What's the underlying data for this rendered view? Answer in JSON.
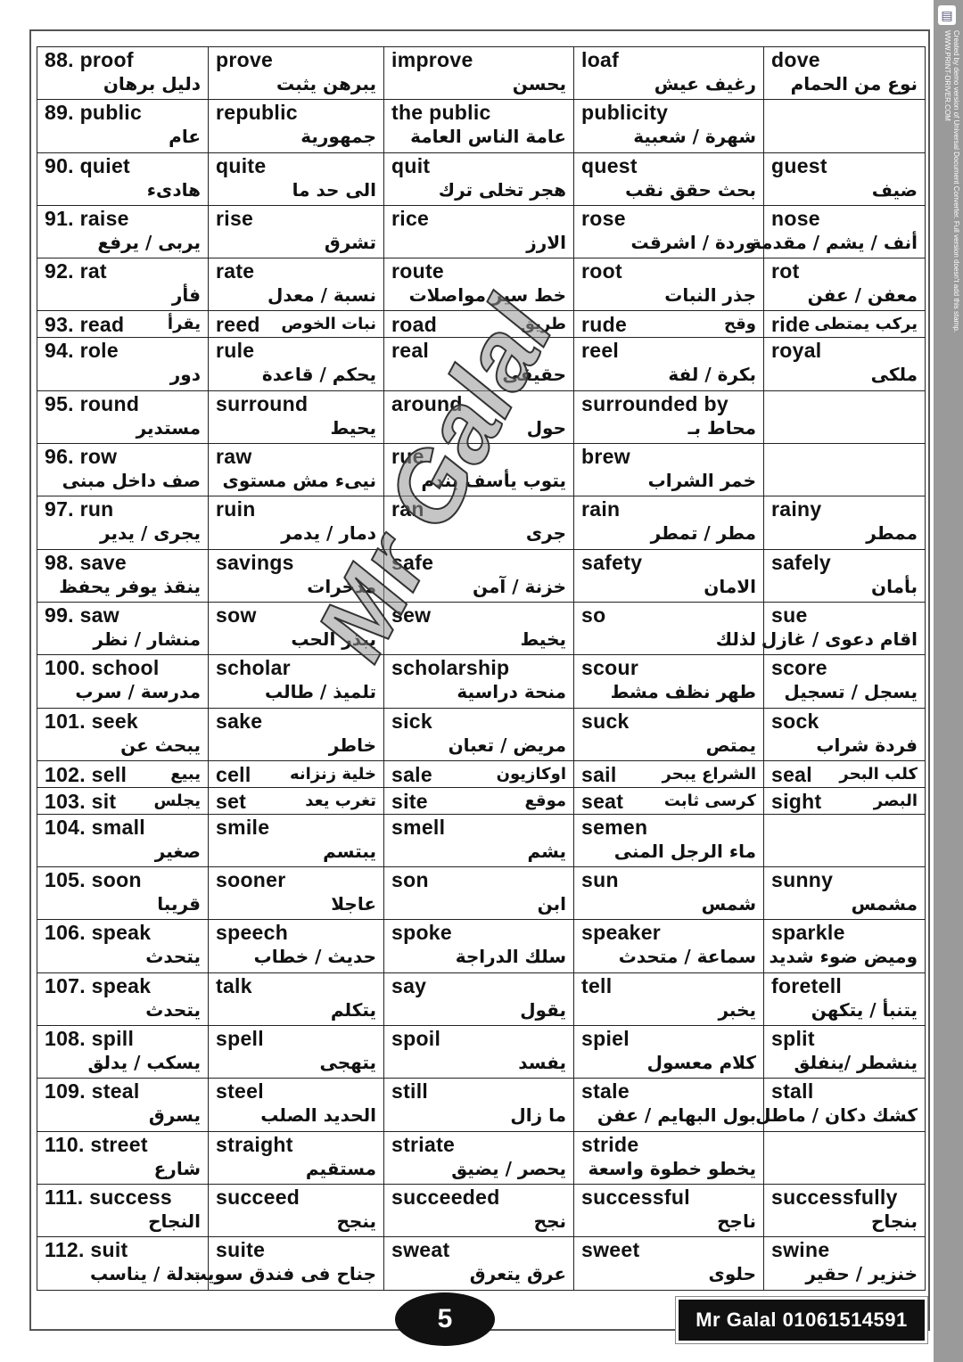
{
  "stamp": {
    "line1": "Created by demo version of Universal Document Converter. Full version doesn't add this stamp.",
    "line2": "WWW.PRINT-DRIVER.COM"
  },
  "watermark": "Mr Galal",
  "rows": [
    {
      "type": "dbl",
      "cells": [
        {
          "en": "88. proof",
          "ar": "دليل برهان"
        },
        {
          "en": "prove",
          "ar": "يبرهن يثبت"
        },
        {
          "en": "improve",
          "ar": "يحسن"
        },
        {
          "en": "loaf",
          "ar": "رغيف عيش"
        },
        {
          "en": "dove",
          "ar": "نوع من الحمام"
        }
      ]
    },
    {
      "type": "dbl",
      "cells": [
        {
          "en": "89. public",
          "ar": "عام"
        },
        {
          "en": "republic",
          "ar": "جمهورية"
        },
        {
          "en": "the public",
          "ar": "عامة الناس العامة"
        },
        {
          "en": "publicity",
          "ar": "شهرة / شعبية"
        },
        {
          "en": "",
          "ar": ""
        }
      ]
    },
    {
      "type": "dbl",
      "cells": [
        {
          "en": "90. quiet",
          "ar": "هادىء"
        },
        {
          "en": "quite",
          "ar": "الى حد ما"
        },
        {
          "en": "quit",
          "ar": "هجر تخلى ترك"
        },
        {
          "en": "quest",
          "ar": "بحث حقق نقب"
        },
        {
          "en": "guest",
          "ar": "ضيف"
        }
      ]
    },
    {
      "type": "dbl",
      "cells": [
        {
          "en": "91. raise",
          "ar": "يربى / يرفع"
        },
        {
          "en": "rise",
          "ar": "تشرق"
        },
        {
          "en": "rice",
          "ar": "الارز"
        },
        {
          "en": "rose",
          "ar": "وردة / اشرقت"
        },
        {
          "en": "nose",
          "ar": "أنف / يشم / مقدمة"
        }
      ]
    },
    {
      "type": "dbl",
      "cells": [
        {
          "en": "92. rat",
          "ar": "فأر"
        },
        {
          "en": "rate",
          "ar": "نسبة / معدل"
        },
        {
          "en": "route",
          "ar": "خط سير مواصلات"
        },
        {
          "en": "root",
          "ar": "جذر النبات"
        },
        {
          "en": "rot",
          "ar": "معفن / عفن"
        }
      ]
    },
    {
      "type": "sgl",
      "cells": [
        {
          "en": "93. read",
          "ar": "يقرأ"
        },
        {
          "en": "reed",
          "ar": "نبات الخوص"
        },
        {
          "en": "road",
          "ar": "طريق"
        },
        {
          "en": "rude",
          "ar": "وقح"
        },
        {
          "en": "ride",
          "ar": "يركب يمتطى"
        }
      ]
    },
    {
      "type": "dbl",
      "cells": [
        {
          "en": "94. role",
          "ar": "دور"
        },
        {
          "en": "rule",
          "ar": "يحكم / قاعدة"
        },
        {
          "en": "real",
          "ar": "حقيقى"
        },
        {
          "en": "reel",
          "ar": "بكرة / لفة"
        },
        {
          "en": "royal",
          "ar": "ملكى"
        }
      ]
    },
    {
      "type": "dbl",
      "cells": [
        {
          "en": "95. round",
          "ar": "مستدير"
        },
        {
          "en": "surround",
          "ar": "يحيط"
        },
        {
          "en": "around",
          "ar": "حول"
        },
        {
          "en": "surrounded by",
          "ar": "محاط بـ"
        },
        {
          "en": "",
          "ar": ""
        }
      ]
    },
    {
      "type": "dbl",
      "cells": [
        {
          "en": "96. row",
          "ar": "صف داخل مبنى"
        },
        {
          "en": "raw",
          "ar": "نيىء مش مستوى"
        },
        {
          "en": "rue",
          "ar": "يتوب يأسف يندم"
        },
        {
          "en": "brew",
          "ar": "خمر الشراب"
        },
        {
          "en": "",
          "ar": ""
        }
      ]
    },
    {
      "type": "dbl",
      "cells": [
        {
          "en": "97. run",
          "ar": "يجرى / يدير"
        },
        {
          "en": "ruin",
          "ar": "دمار / يدمر"
        },
        {
          "en": "ran",
          "ar": "جرى"
        },
        {
          "en": "rain",
          "ar": "مطر / تمطر"
        },
        {
          "en": "rainy",
          "ar": "ممطر"
        }
      ]
    },
    {
      "type": "dbl",
      "cells": [
        {
          "en": "98. save",
          "ar": "ينقذ يوفر يحفظ"
        },
        {
          "en": "savings",
          "ar": "مدخرات"
        },
        {
          "en": "safe",
          "ar": "خزنة / آمن"
        },
        {
          "en": "safety",
          "ar": "الامان"
        },
        {
          "en": "safely",
          "ar": "بأمان"
        }
      ]
    },
    {
      "type": "dbl",
      "cells": [
        {
          "en": "99. saw",
          "ar": "منشار / نظر"
        },
        {
          "en": "sow",
          "ar": "يبذر الحب"
        },
        {
          "en": "sew",
          "ar": "يخيط"
        },
        {
          "en": "so",
          "ar": "لذلك"
        },
        {
          "en": "sue",
          "ar": "اقام دعوى / غازل"
        }
      ]
    },
    {
      "type": "dbl",
      "cells": [
        {
          "en": "100. school",
          "ar": "مدرسة / سرب"
        },
        {
          "en": "scholar",
          "ar": "تلميذ / طالب"
        },
        {
          "en": "scholarship",
          "ar": "منحة دراسية"
        },
        {
          "en": "scour",
          "ar": "طهر نظف مشط"
        },
        {
          "en": "score",
          "ar": "يسجل / تسجيل"
        }
      ]
    },
    {
      "type": "dbl",
      "cells": [
        {
          "en": "101. seek",
          "ar": "يبحث عن"
        },
        {
          "en": "sake",
          "ar": "خاطر"
        },
        {
          "en": "sick",
          "ar": "مريض / تعبان"
        },
        {
          "en": "suck",
          "ar": "يمتص"
        },
        {
          "en": "sock",
          "ar": "فردة شراب"
        }
      ]
    },
    {
      "type": "sgl",
      "cells": [
        {
          "en": "102. sell",
          "ar": "يبيع"
        },
        {
          "en": "cell",
          "ar": "خلية زنزانه"
        },
        {
          "en": "sale",
          "ar": "اوكازيون"
        },
        {
          "en": "sail",
          "ar": "الشراع يبحر"
        },
        {
          "en": "seal",
          "ar": "كلب البحر"
        }
      ]
    },
    {
      "type": "sgl",
      "cells": [
        {
          "en": "103. sit",
          "ar": "يجلس"
        },
        {
          "en": "set",
          "ar": "تغرب يعد"
        },
        {
          "en": "site",
          "ar": "موقع"
        },
        {
          "en": "seat",
          "ar": "كرسى ثابت"
        },
        {
          "en": "sight",
          "ar": "البصر"
        }
      ]
    },
    {
      "type": "dbl",
      "cells": [
        {
          "en": "104. small",
          "ar": "صغير"
        },
        {
          "en": "smile",
          "ar": "يبتسم"
        },
        {
          "en": "smell",
          "ar": "يشم"
        },
        {
          "en": "semen",
          "ar": "ماء الرجل المنى"
        },
        {
          "en": "",
          "ar": ""
        }
      ]
    },
    {
      "type": "dbl",
      "cells": [
        {
          "en": "105. soon",
          "ar": "قريبا"
        },
        {
          "en": "sooner",
          "ar": "عاجلا"
        },
        {
          "en": "son",
          "ar": "ابن"
        },
        {
          "en": "sun",
          "ar": "شمس"
        },
        {
          "en": "sunny",
          "ar": "مشمس"
        }
      ]
    },
    {
      "type": "dbl",
      "cells": [
        {
          "en": "106. speak",
          "ar": "يتحدث"
        },
        {
          "en": "speech",
          "ar": "حديث / خطاب"
        },
        {
          "en": "spoke",
          "ar": "سلك الدراجة"
        },
        {
          "en": "speaker",
          "ar": "سماعة / متحدث"
        },
        {
          "en": "sparkle",
          "ar": "وميض ضوء شديد"
        }
      ]
    },
    {
      "type": "dbl",
      "cells": [
        {
          "en": "107. speak",
          "ar": "يتحدث"
        },
        {
          "en": "talk",
          "ar": "يتكلم"
        },
        {
          "en": "say",
          "ar": "يقول"
        },
        {
          "en": "tell",
          "ar": "يخبر"
        },
        {
          "en": "foretell",
          "ar": "يتنبأ / يتكهن"
        }
      ]
    },
    {
      "type": "dbl",
      "cells": [
        {
          "en": "108. spill",
          "ar": "يسكب / يدلق"
        },
        {
          "en": "spell",
          "ar": "يتهجى"
        },
        {
          "en": "spoil",
          "ar": "يفسد"
        },
        {
          "en": "spiel",
          "ar": "كلام معسول"
        },
        {
          "en": "split",
          "ar": "ينشطر /ينفلق"
        }
      ]
    },
    {
      "type": "dbl",
      "cells": [
        {
          "en": "109. steal",
          "ar": "يسرق"
        },
        {
          "en": "steel",
          "ar": "الحديد الصلب"
        },
        {
          "en": "still",
          "ar": "ما زال"
        },
        {
          "en": "stale",
          "ar": "بول البهايم / عفن"
        },
        {
          "en": "stall",
          "ar": "كشك دكان / ماطل"
        }
      ]
    },
    {
      "type": "dbl",
      "cells": [
        {
          "en": "110. street",
          "ar": "شارع"
        },
        {
          "en": "straight",
          "ar": "مستقيم"
        },
        {
          "en": "striate",
          "ar": "يحصر / يضيق"
        },
        {
          "en": "stride",
          "ar": "يخطو خطوة واسعة"
        },
        {
          "en": "",
          "ar": ""
        }
      ]
    },
    {
      "type": "dbl",
      "cells": [
        {
          "en": "111. success",
          "ar": "النجاح"
        },
        {
          "en": "succeed",
          "ar": "ينجح"
        },
        {
          "en": "succeeded",
          "ar": "نجح"
        },
        {
          "en": "successful",
          "ar": "ناجح"
        },
        {
          "en": "successfully",
          "ar": "بنجاح"
        }
      ]
    },
    {
      "type": "dbl",
      "cells": [
        {
          "en": "112. suit",
          "ar": "بدلة / يناسب"
        },
        {
          "en": "suite",
          "ar": "جناح فى فندق سويت"
        },
        {
          "en": "sweat",
          "ar": "عرق يتعرق"
        },
        {
          "en": "sweet",
          "ar": "حلوى"
        },
        {
          "en": "swine",
          "ar": "خنزير / حقير"
        }
      ]
    }
  ],
  "footer": {
    "page_number": "5",
    "author": "Mr Galal  01061514591"
  }
}
